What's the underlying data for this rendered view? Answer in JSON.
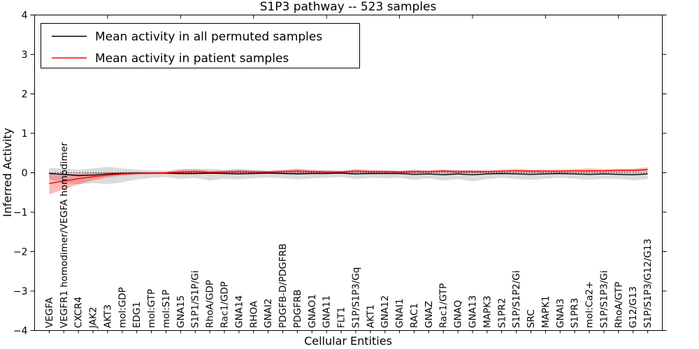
{
  "chart_data": {
    "type": "line",
    "title": "S1P3 pathway -- 523 samples",
    "xlabel": "Cellular Entities",
    "ylabel": "Inferred Activity",
    "ylim": [
      -4,
      4
    ],
    "yticks": [
      -4,
      -3,
      -2,
      -1,
      0,
      1,
      2,
      3,
      4
    ],
    "ytick_labels": [
      "−4",
      "−3",
      "−2",
      "−1",
      "0",
      "1",
      "2",
      "3",
      "4"
    ],
    "xlim": [
      0,
      43
    ],
    "x_major_ticks": [
      5,
      10,
      15,
      20,
      25,
      30,
      35,
      40
    ],
    "grid": false,
    "legend_position": "upper left",
    "zero_line": {
      "value": 0,
      "style": "dotted",
      "color": "#000000"
    },
    "categories": [
      "VEGFA",
      "VEGFR1 homodimer/VEGFA homodimer",
      "CXCR4",
      "JAK2",
      "AKT3",
      "mol:GDP",
      "EDG1",
      "mol:GTP",
      "mol:S1P",
      "GNA15",
      "S1P1/S1P/Gi",
      "RhoA/GDP",
      "Rac1/GDP",
      "GNA14",
      "RHOA",
      "GNAI2",
      "PDGFB-D/PDGFRB",
      "PDGFRB",
      "GNAO1",
      "GNA11",
      "FLT1",
      "S1P/S1P3/Gq",
      "AKT1",
      "GNA12",
      "GNAI1",
      "RAC1",
      "GNAZ",
      "Rac1/GTP",
      "GNAQ",
      "GNA13",
      "MAPK3",
      "S1PR2",
      "S1P/S1P2/Gi",
      "SRC",
      "MAPK1",
      "GNAI3",
      "S1PR3",
      "mol:Ca2+",
      "S1P/S1P3/Gi",
      "RhoA/GTP",
      "G12/G13",
      "S1P/S1P3/G12/G13"
    ],
    "series": [
      {
        "name": "Mean activity in all permuted samples",
        "color": "#000000",
        "line_width": 1.4,
        "band_color": "#999999",
        "band_opacity": 0.35,
        "values": [
          -0.02,
          -0.04,
          -0.07,
          -0.06,
          -0.03,
          -0.02,
          -0.01,
          -0.01,
          -0.01,
          -0.02,
          -0.02,
          -0.01,
          -0.02,
          -0.03,
          -0.02,
          -0.01,
          -0.02,
          -0.03,
          -0.02,
          -0.02,
          -0.01,
          -0.03,
          -0.02,
          -0.02,
          -0.02,
          -0.04,
          -0.03,
          -0.05,
          -0.03,
          -0.05,
          -0.03,
          -0.02,
          -0.03,
          -0.04,
          -0.03,
          -0.02,
          -0.03,
          -0.04,
          -0.03,
          -0.04,
          -0.05,
          -0.03
        ],
        "band_low": [
          -0.17,
          -0.24,
          -0.3,
          -0.26,
          -0.29,
          -0.24,
          -0.17,
          -0.13,
          -0.11,
          -0.16,
          -0.13,
          -0.2,
          -0.15,
          -0.17,
          -0.14,
          -0.12,
          -0.14,
          -0.17,
          -0.14,
          -0.13,
          -0.11,
          -0.16,
          -0.13,
          -0.14,
          -0.13,
          -0.18,
          -0.14,
          -0.2,
          -0.16,
          -0.22,
          -0.16,
          -0.13,
          -0.16,
          -0.18,
          -0.15,
          -0.13,
          -0.15,
          -0.18,
          -0.15,
          -0.16,
          -0.19,
          -0.16
        ],
        "band_high": [
          0.13,
          0.1,
          0.08,
          0.11,
          0.15,
          0.11,
          0.08,
          0.06,
          0.05,
          0.09,
          0.07,
          0.1,
          0.07,
          0.09,
          0.07,
          0.05,
          0.07,
          0.08,
          0.06,
          0.06,
          0.05,
          0.07,
          0.05,
          0.06,
          0.05,
          0.07,
          0.05,
          0.07,
          0.06,
          0.07,
          0.05,
          0.05,
          0.06,
          0.06,
          0.05,
          0.05,
          0.05,
          0.07,
          0.05,
          0.05,
          0.07,
          0.05
        ]
      },
      {
        "name": "Mean activity in patient samples",
        "color": "#ff0000",
        "line_width": 1.4,
        "band_color": "#ff0000",
        "band_opacity": 0.28,
        "values": [
          -0.27,
          -0.21,
          -0.15,
          -0.1,
          -0.06,
          -0.03,
          -0.02,
          -0.01,
          0.0,
          0.02,
          0.03,
          0.01,
          0.02,
          0.03,
          0.02,
          0.02,
          0.03,
          0.04,
          0.03,
          0.02,
          0.02,
          0.04,
          0.03,
          0.03,
          0.02,
          0.03,
          0.03,
          0.04,
          0.03,
          0.03,
          0.03,
          0.04,
          0.05,
          0.04,
          0.04,
          0.04,
          0.05,
          0.05,
          0.05,
          0.06,
          0.06,
          0.08
        ],
        "band_low": [
          -0.55,
          -0.42,
          -0.29,
          -0.19,
          -0.12,
          -0.07,
          -0.05,
          -0.04,
          -0.03,
          -0.05,
          -0.04,
          -0.03,
          -0.02,
          -0.01,
          -0.02,
          -0.02,
          -0.01,
          -0.02,
          -0.01,
          -0.01,
          -0.01,
          0.0,
          -0.01,
          -0.01,
          -0.01,
          -0.01,
          0.0,
          0.0,
          -0.01,
          0.0,
          0.0,
          0.0,
          0.01,
          0.0,
          0.0,
          0.0,
          0.01,
          0.0,
          0.01,
          0.01,
          0.02,
          0.03
        ],
        "band_high": [
          -0.02,
          -0.03,
          -0.02,
          0.0,
          0.01,
          0.02,
          0.02,
          0.02,
          0.02,
          0.08,
          0.1,
          0.05,
          0.06,
          0.08,
          0.06,
          0.05,
          0.07,
          0.1,
          0.07,
          0.06,
          0.05,
          0.09,
          0.07,
          0.06,
          0.05,
          0.07,
          0.06,
          0.08,
          0.07,
          0.06,
          0.06,
          0.08,
          0.1,
          0.08,
          0.08,
          0.08,
          0.09,
          0.11,
          0.09,
          0.1,
          0.1,
          0.14
        ]
      }
    ]
  },
  "layout_labels": {
    "frame_color": "#000000"
  }
}
